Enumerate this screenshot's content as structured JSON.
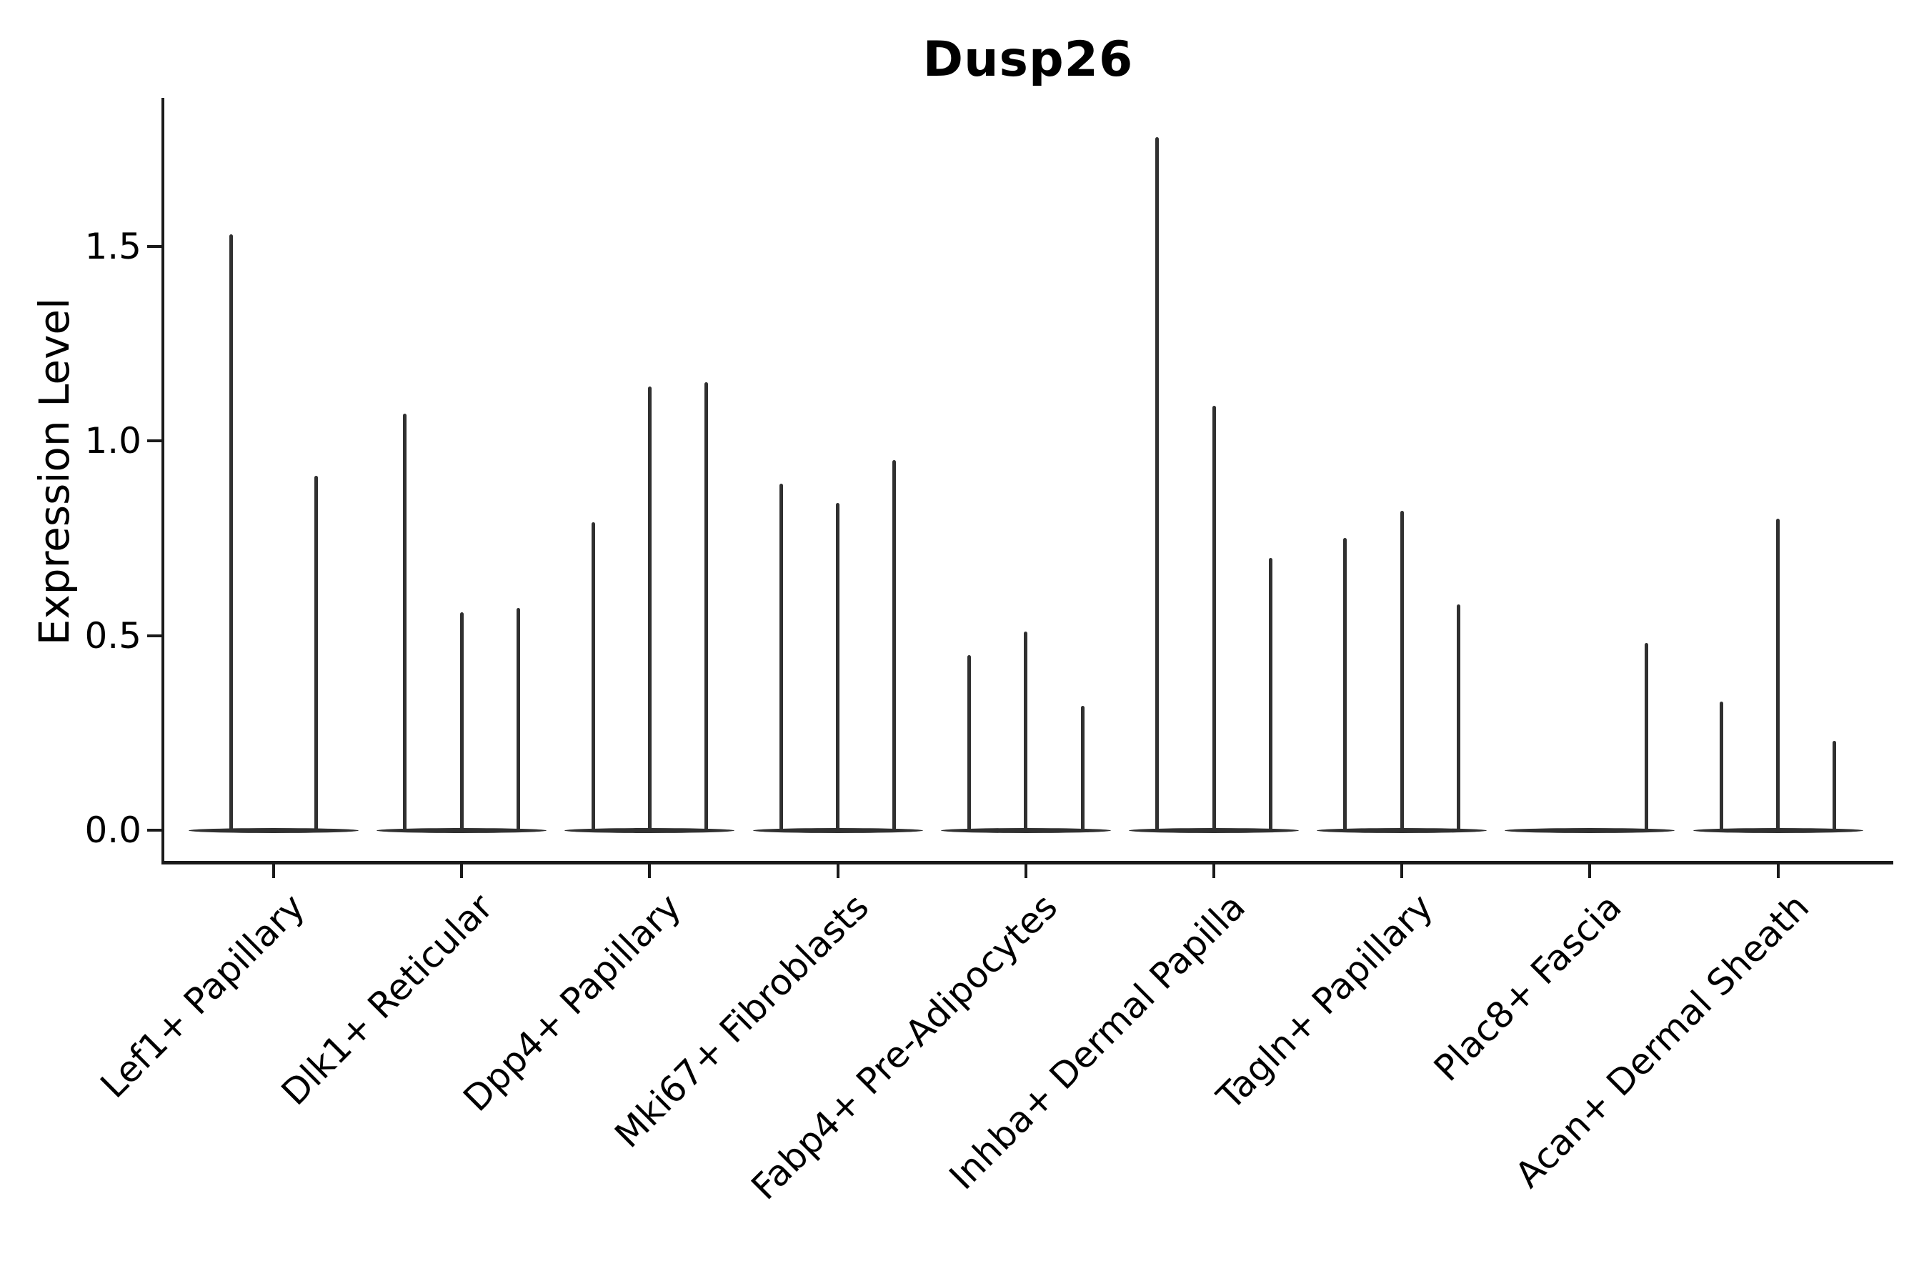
{
  "title": "Dusp26",
  "chart_data": {
    "type": "violin",
    "title": "Dusp26",
    "xlabel": "",
    "ylabel": "Expression Level",
    "categories": [
      "Lef1+ Papillary",
      "Dlk1+ Reticular",
      "Dpp4+ Papillary",
      "Mki67+ Fibroblasts",
      "Fabp4+ Pre-Adipocytes",
      "Inhba+ Dermal Papilla",
      "Tagln+ Papillary",
      "Plac8+ Fascia",
      "Acan+ Dermal Sheath"
    ],
    "violins_per_category_max_expression": [
      [
        1.53,
        0.91
      ],
      [
        1.07,
        0.56,
        0.57
      ],
      [
        0.79,
        1.14,
        1.15
      ],
      [
        0.89,
        0.84,
        0.95
      ],
      [
        0.45,
        0.51,
        0.32
      ],
      [
        1.78,
        1.09,
        0.7
      ],
      [
        0.75,
        0.82,
        0.58
      ],
      [
        0.0,
        0.0,
        0.48
      ],
      [
        0.33,
        0.8,
        0.23
      ]
    ],
    "yticks": [
      {
        "label": "0.0",
        "value": 0.0
      },
      {
        "label": "0.5",
        "value": 0.5
      },
      {
        "label": "1.0",
        "value": 1.0
      },
      {
        "label": "1.5",
        "value": 1.5
      }
    ],
    "ylim": [
      -0.085,
      1.88
    ],
    "grid": false,
    "legend": "none",
    "x_tick_rotation_deg": 45,
    "violin_color": "#303030",
    "axis_color": "#1a1a1a",
    "background_color": "#ffffff"
  }
}
